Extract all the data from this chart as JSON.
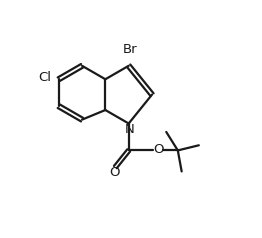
{
  "bg_color": "#ffffff",
  "line_color": "#1a1a1a",
  "line_width": 1.6,
  "font_size": 9.5,
  "label_Br": "Br",
  "label_Cl": "Cl",
  "label_N": "N",
  "label_O_carbonyl": "O",
  "label_O_ester": "O",
  "figsize": [
    2.62,
    2.38
  ],
  "dpi": 100
}
